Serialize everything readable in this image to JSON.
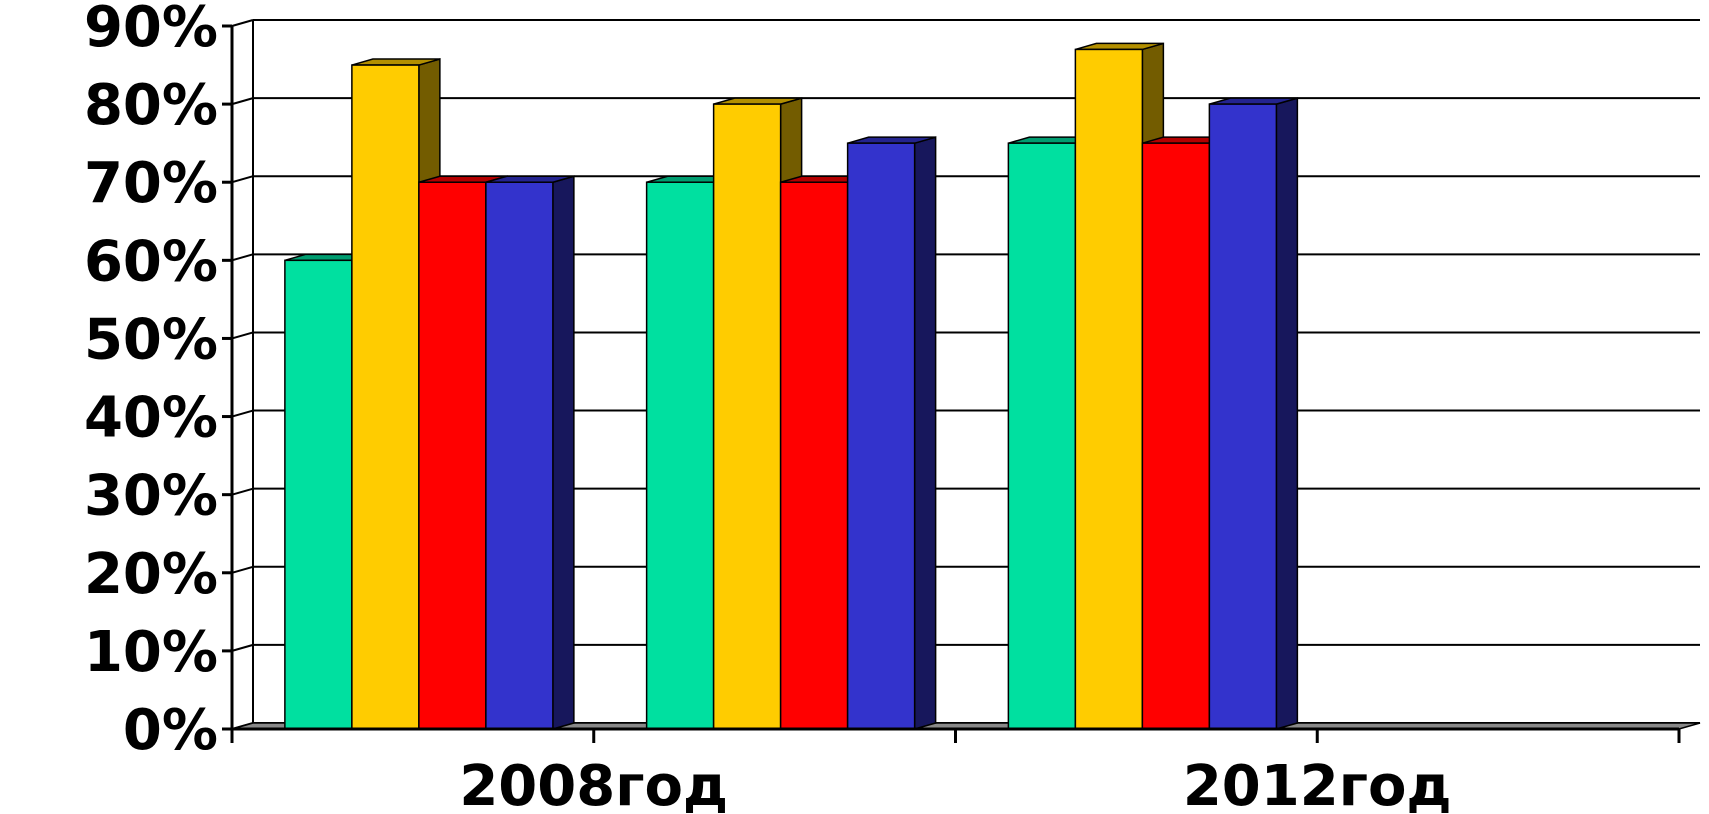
{
  "chart_data": {
    "type": "bar",
    "title": "",
    "xlabel": "",
    "ylabel": "",
    "ylim": [
      0,
      90
    ],
    "yticks": [
      "0%",
      "10%",
      "20%",
      "30%",
      "40%",
      "50%",
      "60%",
      "70%",
      "80%",
      "90%"
    ],
    "categories": [
      "2008год",
      "",
      "2012год",
      ""
    ],
    "series": [
      {
        "values": [
          60,
          70,
          75,
          null
        ],
        "color": "#00E0A0"
      },
      {
        "values": [
          85,
          80,
          87,
          null
        ],
        "color": "#FFCC00"
      },
      {
        "values": [
          70,
          70,
          75,
          null
        ],
        "color": "#FF0000"
      },
      {
        "values": [
          70,
          75,
          80,
          null
        ],
        "color": "#3333CC"
      }
    ],
    "grid": true,
    "legend": "none",
    "style": "3d-column"
  }
}
